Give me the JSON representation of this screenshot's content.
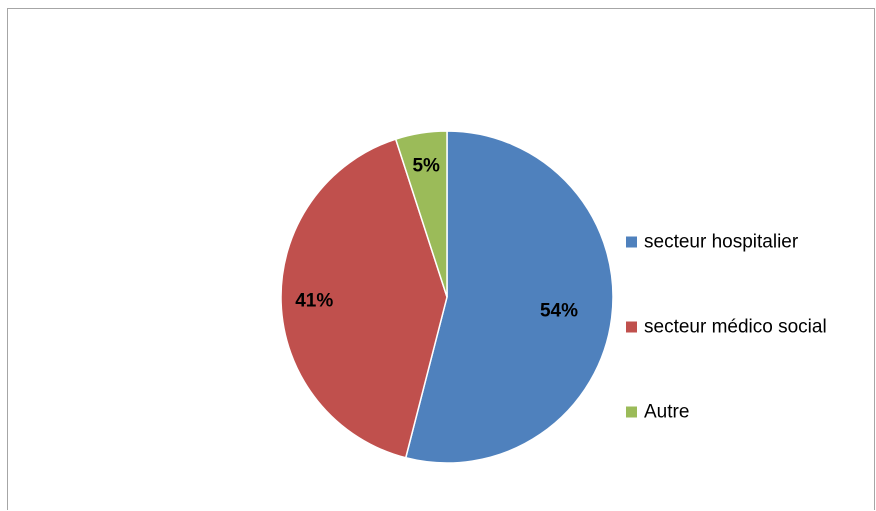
{
  "chart_data": {
    "type": "pie",
    "title": "",
    "legend_position": "right",
    "slices": [
      {
        "name": "secteur hospitalier",
        "value": 54,
        "label": "54%",
        "color": "#4f81bd"
      },
      {
        "name": "secteur médico social",
        "value": 41,
        "label": "41%",
        "color": "#c0504d"
      },
      {
        "name": "Autre",
        "value": 5,
        "label": "5%",
        "color": "#9bbb59"
      }
    ]
  }
}
